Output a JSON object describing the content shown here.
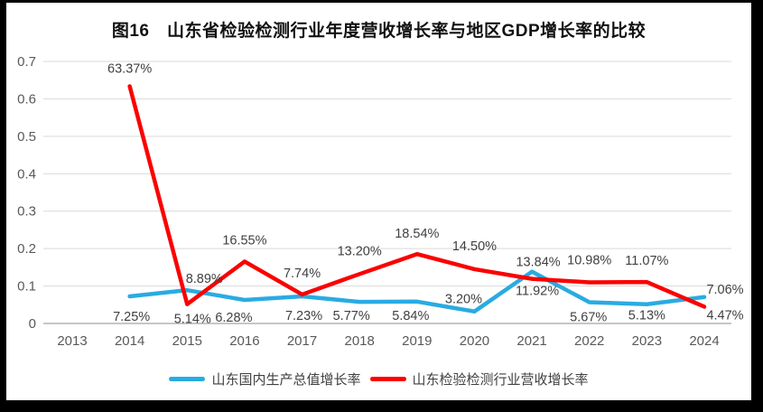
{
  "page": {
    "frame_color": "#000000",
    "panel_color": "#ffffff"
  },
  "title": "图16　山东省检验检测行业年度营收增长率与地区GDP增长率的比较",
  "legend": {
    "items": [
      {
        "label": "山东国内生产总值增长率",
        "color": "#29abe2"
      },
      {
        "label": "山东检验检测行业营收增长率",
        "color": "#fb0000"
      }
    ]
  },
  "chart_data": {
    "type": "line",
    "title": "图16　山东省检验检测行业年度营收增长率与地区GDP增长率的比较",
    "categories": [
      "2013",
      "2014",
      "2015",
      "2016",
      "2017",
      "2018",
      "2019",
      "2020",
      "2021",
      "2022",
      "2023",
      "2024"
    ],
    "xlabel": "",
    "ylabel": "",
    "ylim": [
      0,
      0.7
    ],
    "y_tick_labels": [
      "0",
      "0.1",
      "0.2",
      "0.3",
      "0.4",
      "0.5",
      "0.6",
      "0.7"
    ],
    "grid": true,
    "legend_position": "bottom",
    "gridline_color": "#d9d9d9",
    "zero_line_color": "#b3b3b3",
    "tick_label_color": "#595959",
    "data_label_color": "#404040",
    "series": [
      {
        "name": "山东国内生产总值增长率",
        "color": "#29abe2",
        "values": [
          null,
          0.0725,
          0.0889,
          0.0628,
          0.0723,
          0.0577,
          0.0584,
          0.032,
          0.1384,
          0.0567,
          0.0513,
          0.0706
        ],
        "labels": [
          null,
          "7.25%",
          "8.89%",
          "6.28%",
          "7.23%",
          "5.77%",
          "5.84%",
          "3.20%",
          "13.84%",
          "5.67%",
          "5.13%",
          "7.06%"
        ],
        "label_offsets": [
          null,
          [
            2,
            22
          ],
          [
            19,
            -13
          ],
          [
            -12,
            19
          ],
          [
            2,
            21
          ],
          [
            -9,
            15
          ],
          [
            -7,
            15
          ],
          [
            -12,
            -14
          ],
          [
            7,
            -11
          ],
          [
            -1,
            16
          ],
          [
            0,
            12
          ],
          [
            23,
            -9
          ]
        ]
      },
      {
        "name": "山东检验检测行业营收增长率",
        "color": "#fb0000",
        "values": [
          null,
          0.6337,
          0.0514,
          0.1655,
          0.0774,
          0.132,
          0.1854,
          0.145,
          0.1192,
          0.1098,
          0.1107,
          0.0447
        ],
        "labels": [
          null,
          "63.37%",
          "5.14%",
          "16.55%",
          "7.74%",
          "13.20%",
          "18.54%",
          "14.50%",
          "11.92%",
          "10.98%",
          "11.07%",
          "4.47%"
        ],
        "label_offsets": [
          null,
          [
            0,
            -20
          ],
          [
            6,
            16
          ],
          [
            0,
            -24
          ],
          [
            0,
            -24
          ],
          [
            0,
            -26
          ],
          [
            0,
            -23
          ],
          [
            0,
            -26
          ],
          [
            6,
            13
          ],
          [
            0,
            -25
          ],
          [
            0,
            -24
          ],
          [
            23,
            9
          ]
        ]
      }
    ]
  }
}
